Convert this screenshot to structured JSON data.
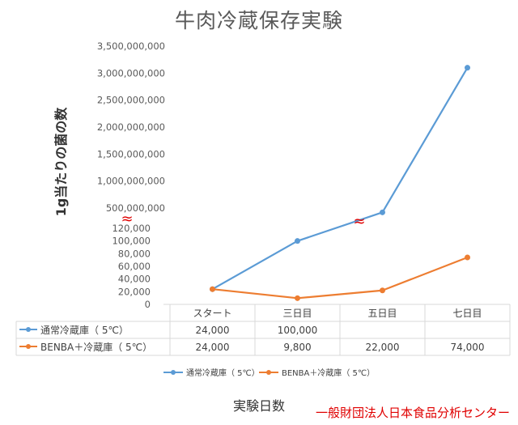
{
  "title": "牛肉冷蔵保存実験",
  "credit": "一般財団法人日本食品分析センター",
  "chart_data": {
    "type": "line",
    "title": "牛肉冷蔵保存実験",
    "xlabel": "実験日数",
    "ylabel": "1g当たりの菌の数",
    "categories": [
      "スタート",
      "三日目",
      "五日目",
      "七日目"
    ],
    "y_axis_broken": true,
    "ylim_lower": [
      0,
      120000
    ],
    "yticks_lower": [
      "0",
      "20,000",
      "40,000",
      "60,000",
      "80,000",
      "100,000",
      "120,000"
    ],
    "ylim_upper": [
      500000000,
      3500000000
    ],
    "yticks_upper": [
      "500,000,000",
      "1,000,000,000",
      "1,500,000,000",
      "2,000,000,000",
      "2,500,000,000",
      "3,000,000,000",
      "3,500,000,000"
    ],
    "break_marks": [
      "≈",
      "≈"
    ],
    "series": [
      {
        "name": "通常冷蔵庫（ 5℃）",
        "color": "#5b9bd5",
        "values": [
          24000,
          100000,
          420000000,
          3100000000
        ],
        "table_values": [
          "24,000",
          "100,000",
          "",
          ""
        ]
      },
      {
        "name": "BENBA＋冷蔵庫（ 5℃）",
        "color": "#ed7d31",
        "values": [
          24000,
          9800,
          22000,
          74000
        ],
        "table_values": [
          "24,000",
          "9,800",
          "22,000",
          "74,000"
        ]
      }
    ],
    "legend_position": "bottom",
    "grid": false
  }
}
